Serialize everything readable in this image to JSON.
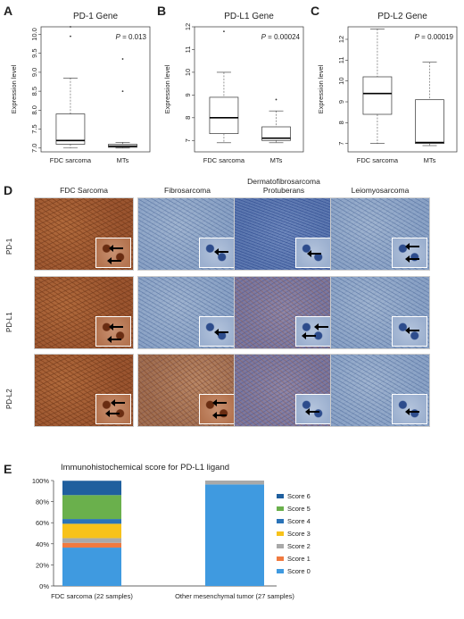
{
  "panels": {
    "A": {
      "letter": "A",
      "title": "PD-1 Gene",
      "pval": "0.013",
      "ylabel": "Expression level",
      "ylim": [
        6.9,
        10.2
      ],
      "ticks": [
        "7.0",
        "7.5",
        "8.0",
        "8.5",
        "9.0",
        "9.5",
        "10.0"
      ],
      "tickvals": [
        7.0,
        7.5,
        8.0,
        8.5,
        9.0,
        9.5,
        10.0
      ],
      "groups": [
        "FDC sarcoma",
        "MTs"
      ],
      "boxes": [
        {
          "min": 7.0,
          "q1": 7.1,
          "med": 7.2,
          "q3": 7.9,
          "max": 8.85,
          "outliers": [
            9.95,
            10.25
          ]
        },
        {
          "min": 7.0,
          "q1": 7.02,
          "med": 7.05,
          "q3": 7.1,
          "max": 7.15,
          "outliers": [
            8.5,
            9.35
          ]
        }
      ]
    },
    "B": {
      "letter": "B",
      "title": "PD-L1 Gene",
      "pval": "0.00024",
      "ylabel": "Expression level",
      "ylim": [
        6.5,
        12.0
      ],
      "ticks": [
        "7",
        "8",
        "9",
        "10",
        "11",
        "12"
      ],
      "tickvals": [
        7,
        8,
        9,
        10,
        11,
        12
      ],
      "groups": [
        "FDC sarcoma",
        "MTs"
      ],
      "boxes": [
        {
          "min": 6.9,
          "q1": 7.3,
          "med": 8.0,
          "q3": 8.9,
          "max": 10.0,
          "outliers": [
            11.8
          ]
        },
        {
          "min": 6.9,
          "q1": 7.0,
          "med": 7.1,
          "q3": 7.6,
          "max": 8.3,
          "outliers": [
            8.8
          ]
        }
      ]
    },
    "C": {
      "letter": "C",
      "title": "PD-L2 Gene",
      "pval": "0.00019",
      "ylabel": "Expression level",
      "ylim": [
        6.6,
        12.6
      ],
      "ticks": [
        "7",
        "8",
        "9",
        "10",
        "11",
        "12"
      ],
      "tickvals": [
        7,
        8,
        9,
        10,
        11,
        12
      ],
      "groups": [
        "FDC sarcoma",
        "MTs"
      ],
      "boxes": [
        {
          "min": 7.0,
          "q1": 8.4,
          "med": 9.4,
          "q3": 10.2,
          "max": 12.5,
          "outliers": []
        },
        {
          "min": 6.9,
          "q1": 7.0,
          "med": 7.05,
          "q3": 9.1,
          "max": 10.9,
          "outliers": []
        }
      ]
    }
  },
  "ihc": {
    "letter": "D",
    "columns": [
      "FDC Sarcoma",
      "Fibrosarcoma",
      "Dermatofibrosarcoma Protuberans",
      "Leiomyosarcoma"
    ],
    "rows": [
      "PD-1",
      "PD-L1",
      "PD-L2"
    ]
  },
  "score_chart": {
    "letter": "E",
    "title": "Immunohistochemical score for PD-L1 ligand",
    "yticks": [
      "0%",
      "20%",
      "40%",
      "60%",
      "80%",
      "100%"
    ],
    "legend": [
      "Score 6",
      "Score 5",
      "Score 4",
      "Score 3",
      "Score 2",
      "Score 1",
      "Score 0"
    ]
  },
  "chart_data": [
    {
      "type": "box",
      "title": "PD-1 Gene",
      "ylabel": "Expression level",
      "categories": [
        "FDC sarcoma",
        "MTs"
      ],
      "p_value": "P = 0.013"
    },
    {
      "type": "box",
      "title": "PD-L1 Gene",
      "ylabel": "Expression level",
      "categories": [
        "FDC sarcoma",
        "MTs"
      ],
      "p_value": "P = 0.00024"
    },
    {
      "type": "box",
      "title": "PD-L2 Gene",
      "ylabel": "Expression level",
      "categories": [
        "FDC sarcoma",
        "MTs"
      ],
      "p_value": "P = 0.00019"
    },
    {
      "type": "bar",
      "stacked": true,
      "title": "Immunohistochemical score for PD-L1 ligand",
      "categories": [
        "FDC sarcoma (22 samples)",
        "Other mesenchymal tumor (27 samples)"
      ],
      "ylim": [
        0,
        100
      ],
      "series": [
        {
          "name": "Score 0",
          "color": "#3f9ae0",
          "values": [
            36.4,
            96.3
          ]
        },
        {
          "name": "Score 1",
          "color": "#f07a40",
          "values": [
            4.5,
            0
          ]
        },
        {
          "name": "Score 2",
          "color": "#a9a9a9",
          "values": [
            4.5,
            3.7
          ]
        },
        {
          "name": "Score 3",
          "color": "#f7c21a",
          "values": [
            13.6,
            0
          ]
        },
        {
          "name": "Score 4",
          "color": "#2a73b8",
          "values": [
            4.5,
            0
          ]
        },
        {
          "name": "Score 5",
          "color": "#6ab04c",
          "values": [
            22.7,
            0
          ]
        },
        {
          "name": "Score 6",
          "color": "#1f5f9e",
          "values": [
            13.6,
            0
          ]
        }
      ]
    }
  ]
}
